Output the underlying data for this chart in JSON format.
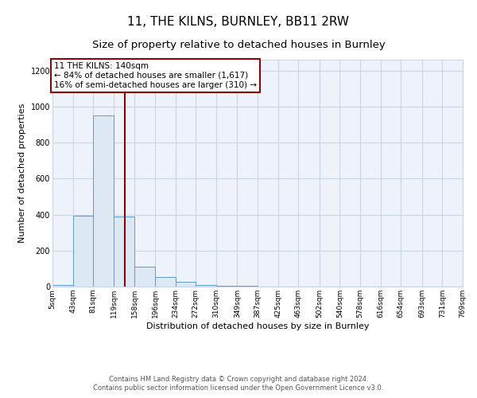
{
  "title": "11, THE KILNS, BURNLEY, BB11 2RW",
  "subtitle": "Size of property relative to detached houses in Burnley",
  "xlabel": "Distribution of detached houses by size in Burnley",
  "ylabel": "Number of detached properties",
  "bar_values": [
    10,
    395,
    950,
    390,
    110,
    55,
    25,
    10,
    5,
    5,
    0,
    0,
    0,
    0,
    0,
    0,
    0,
    0,
    0,
    0
  ],
  "bin_edges": [
    5,
    43,
    81,
    119,
    158,
    196,
    234,
    272,
    310,
    349,
    387,
    425,
    463,
    502,
    540,
    578,
    616,
    654,
    693,
    731,
    769
  ],
  "tick_labels": [
    "5sqm",
    "43sqm",
    "81sqm",
    "119sqm",
    "158sqm",
    "196sqm",
    "234sqm",
    "272sqm",
    "310sqm",
    "349sqm",
    "387sqm",
    "425sqm",
    "463sqm",
    "502sqm",
    "540sqm",
    "578sqm",
    "616sqm",
    "654sqm",
    "693sqm",
    "731sqm",
    "769sqm"
  ],
  "bar_facecolor": "#dce9f5",
  "bar_edgecolor": "#5b9bd5",
  "grid_color": "#c8d4e8",
  "bg_color": "#eef3fb",
  "vline_x": 140,
  "vline_color": "#8b0000",
  "ylim": [
    0,
    1260
  ],
  "yticks": [
    0,
    200,
    400,
    600,
    800,
    1000,
    1200
  ],
  "annotation_text": "11 THE KILNS: 140sqm\n← 84% of detached houses are smaller (1,617)\n16% of semi-detached houses are larger (310) →",
  "annotation_box_edgecolor": "#8b0000",
  "annotation_box_facecolor": "#ffffff",
  "footer_line1": "Contains HM Land Registry data © Crown copyright and database right 2024.",
  "footer_line2": "Contains public sector information licensed under the Open Government Licence v3.0.",
  "title_fontsize": 11,
  "subtitle_fontsize": 9.5,
  "xlabel_fontsize": 8,
  "ylabel_fontsize": 8,
  "tick_fontsize": 6.5,
  "annotation_fontsize": 7.5,
  "footer_fontsize": 6
}
